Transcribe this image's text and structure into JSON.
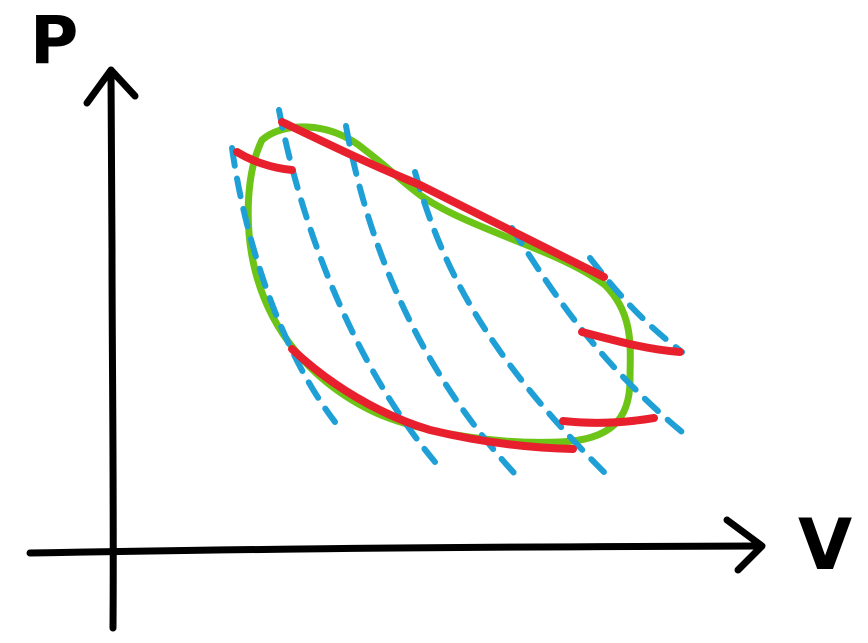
{
  "axes": {
    "y_label": "P",
    "x_label": "V"
  },
  "colors": {
    "axis": "#000000",
    "cycle": "#6cc417",
    "adiabats": "#1e9fd6",
    "isotherms": "#e8202e"
  },
  "elements": {
    "cycle": "closed-loop",
    "adiabats": "dashed",
    "isotherms": "solid"
  }
}
